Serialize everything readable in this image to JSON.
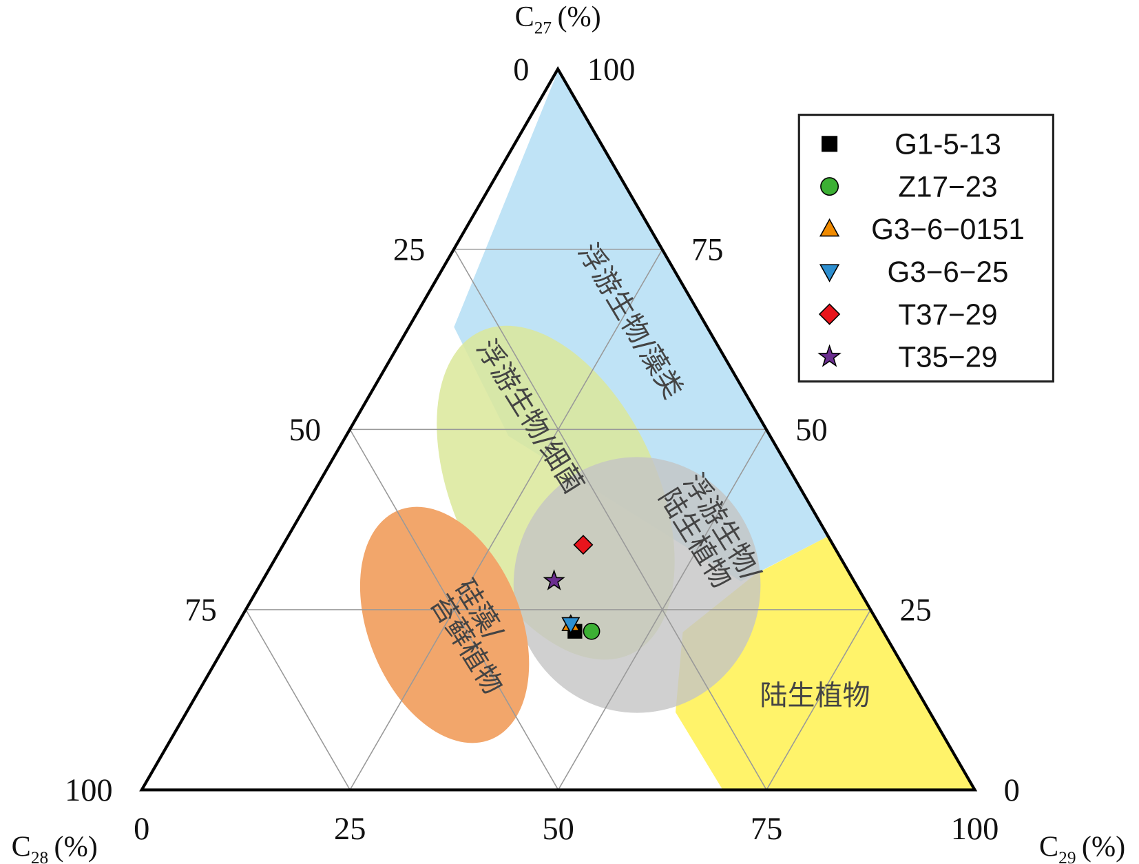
{
  "chart_data": {
    "type": "ternary",
    "axes": {
      "c27": {
        "label": [
          "C",
          "27",
          "(%)"
        ],
        "ticks": [
          0,
          25,
          50,
          75,
          100
        ]
      },
      "c28": {
        "label": [
          "C",
          "28",
          "(%)"
        ],
        "ticks": [
          0,
          25,
          50,
          75,
          100
        ]
      },
      "c29": {
        "label": [
          "C",
          "29",
          "(%)"
        ],
        "ticks": [
          0,
          25,
          50,
          75,
          100
        ]
      }
    },
    "grid": true,
    "legend": "upper right",
    "fields": [
      {
        "label": [
          "浮游生物/藻类"
        ],
        "color": "#bfe3f6"
      },
      {
        "label": [
          "陆生植物"
        ],
        "color": "#fff36a"
      },
      {
        "label": [
          "浮游生物/细菌"
        ],
        "color": "#dbe89a"
      },
      {
        "label": [
          "浮游生物/",
          "陆生植物"
        ],
        "color": "#c4c4c4"
      },
      {
        "label": [
          "硅藻/",
          "苔藓植物"
        ],
        "color": "#f2a66b"
      }
    ],
    "series": [
      {
        "name": "G1-5-13",
        "color": "#000000",
        "marker": "square",
        "c27": [
          22
        ],
        "c28": [
          37
        ],
        "c29": [
          41
        ]
      },
      {
        "name": "Z17−23",
        "color": "#3cb034",
        "marker": "circle",
        "c27": [
          22
        ],
        "c28": [
          35
        ],
        "c29": [
          43
        ]
      },
      {
        "name": "G3−6−0151",
        "color": "#f08a00",
        "marker": "triangle-up",
        "c27": [
          23
        ],
        "c28": [
          37
        ],
        "c29": [
          40
        ]
      },
      {
        "name": "G3−6−25",
        "color": "#2d8fd0",
        "marker": "triangle-down",
        "c27": [
          23
        ],
        "c28": [
          37
        ],
        "c29": [
          40
        ]
      },
      {
        "name": "T37−29",
        "color": "#e8141c",
        "marker": "diamond",
        "c27": [
          34
        ],
        "c28": [
          30
        ],
        "c29": [
          36
        ]
      },
      {
        "name": "T35−29",
        "color": "#6a2d8f",
        "marker": "star",
        "c27": [
          29
        ],
        "c28": [
          36
        ],
        "c29": [
          35
        ]
      }
    ]
  }
}
